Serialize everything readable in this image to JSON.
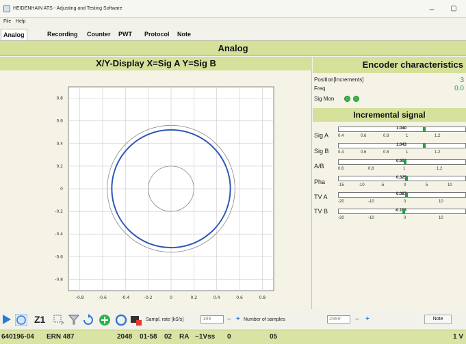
{
  "window": {
    "title": "HEIDENHAIN ATS - Adjusting and Testing Software",
    "minimize": "–",
    "maximize": "▢"
  },
  "menu": [
    "File",
    "Help"
  ],
  "tabs": [
    "Analog",
    "Recording",
    "Counter",
    "PWT",
    "Protocol",
    "Note"
  ],
  "active_tab": "Analog",
  "section_title": "Analog",
  "xy_display": {
    "title": "X/Y-Display X=Sig A Y=Sig B",
    "y_ticks": [
      "0.8",
      "0.6",
      "0.4",
      "0.2",
      "0",
      "-0.2",
      "-0.4",
      "-0.6",
      "-0.8"
    ],
    "x_ticks": [
      "-0.8",
      "-0.6",
      "-0.4",
      "-0.2",
      "0",
      "0.2",
      "0.4",
      "0.6",
      "0.8"
    ]
  },
  "chart_data": {
    "type": "scatter",
    "title": "X/Y-Display X=Sig A Y=Sig B",
    "xlabel": "",
    "ylabel": "",
    "xlim": [
      -0.9,
      0.9
    ],
    "ylim": [
      -0.9,
      0.9
    ],
    "grid": true,
    "reference_circles": [
      {
        "radius": 0.2,
        "color": "#888888"
      },
      {
        "radius": 0.56,
        "color": "#888888"
      }
    ],
    "series": [
      {
        "shape": "circle",
        "center": [
          0,
          0
        ],
        "radius": 0.52,
        "color": "#2f57b8"
      }
    ]
  },
  "encoder": {
    "title": "Encoder characteristics",
    "position_label": "Position[Increments]",
    "position_value": "3",
    "freq_label": "Freq",
    "freq_value": "0.0",
    "sigmon_label": "Sig Mon",
    "led_color": "#3cb54a"
  },
  "incremental": {
    "title": "Incremental signal",
    "meters": [
      {
        "label": "Sig A",
        "value": "1.040",
        "ticks": [
          "0.4",
          "0.6",
          "0.8",
          "1",
          "1.2"
        ]
      },
      {
        "label": "Sig B",
        "value": "1.043",
        "ticks": [
          "0.4",
          "0.6",
          "0.8",
          "1",
          "1.2"
        ]
      },
      {
        "label": "A/B",
        "value": "0.997",
        "ticks": [
          "0.6",
          "0.8",
          "1",
          "1.2"
        ]
      },
      {
        "label": "Pha",
        "value": "0.325",
        "ticks": [
          "-15",
          "-10",
          "-5",
          "0",
          "5",
          "10"
        ]
      },
      {
        "label": "TV A",
        "value": "0.087",
        "ticks": [
          "-20",
          "-10",
          "0",
          "10"
        ]
      },
      {
        "label": "TV B",
        "value": "-0.153",
        "ticks": [
          "-20",
          "-10",
          "0",
          "10"
        ]
      }
    ]
  },
  "toolbar": {
    "zoom_label": "Z1",
    "sample_rate_label": "Sampl. rate [kS/s]",
    "sample_rate_value": "100",
    "samples_label": "Number of samples",
    "samples_value": "2000",
    "note_label": "Note"
  },
  "status": {
    "id": "640196-04",
    "model": "ERN 487",
    "lines": "2048",
    "code1": "01-58",
    "code2": "02",
    "type": "RA",
    "signal": "~1Vss",
    "value": "0",
    "extra": "05",
    "right": "1 V"
  }
}
